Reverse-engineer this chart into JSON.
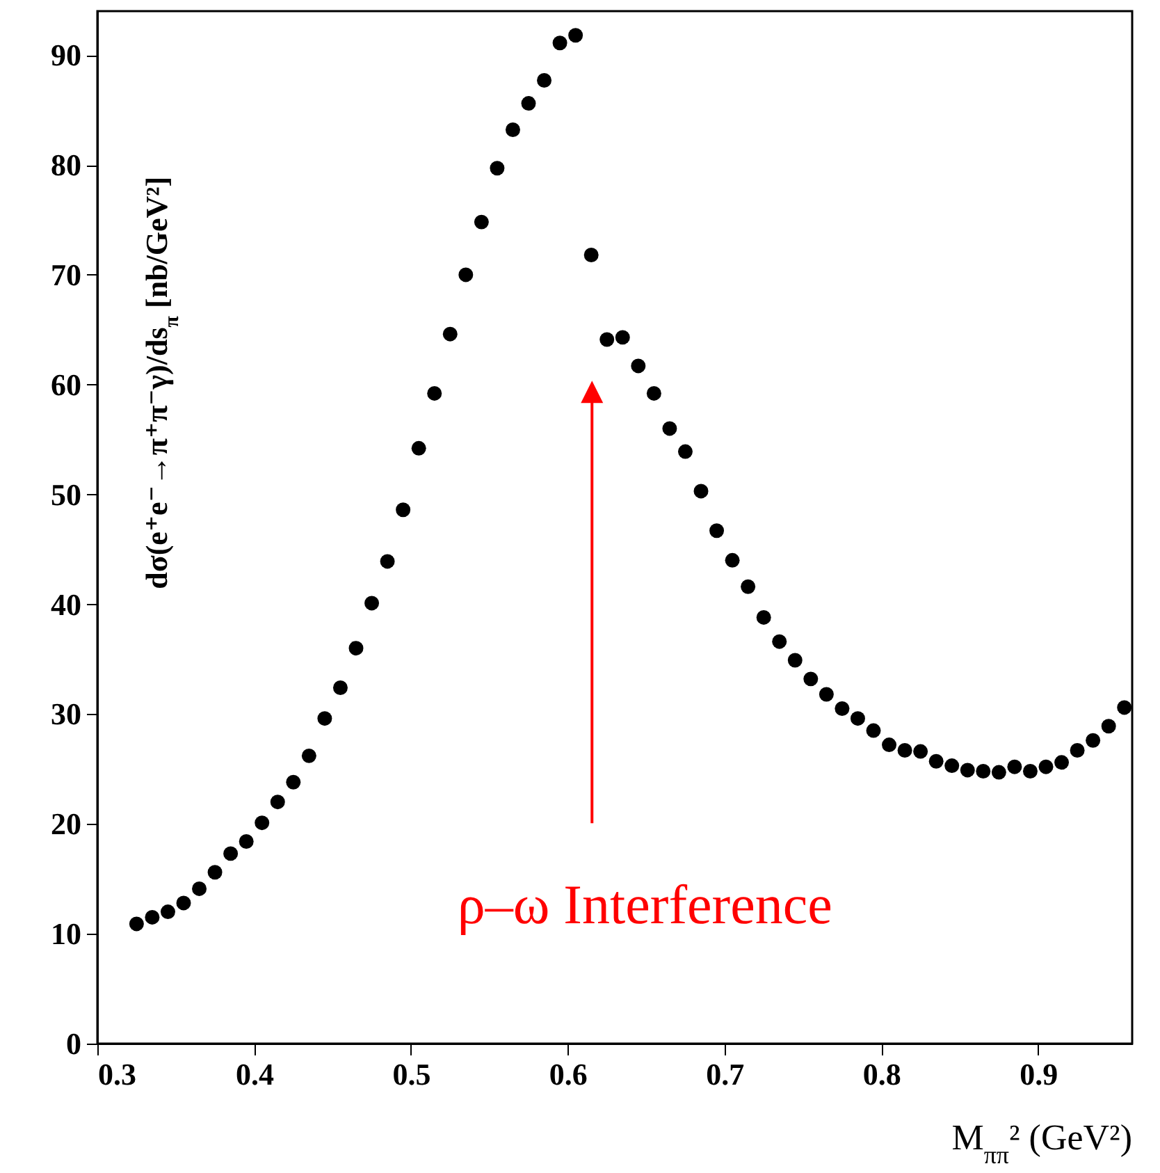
{
  "chart_data": {
    "type": "scatter",
    "xlabel": "M$_{ππ}$² (GeV²)",
    "ylabel": "dσ(e⁺e⁻→π⁺π⁻γ)/ds$_{π}$ [nb/GeV²]",
    "x": [
      0.325,
      0.335,
      0.345,
      0.355,
      0.365,
      0.375,
      0.385,
      0.395,
      0.405,
      0.415,
      0.425,
      0.435,
      0.445,
      0.455,
      0.465,
      0.475,
      0.485,
      0.495,
      0.505,
      0.515,
      0.525,
      0.535,
      0.545,
      0.555,
      0.565,
      0.575,
      0.585,
      0.595,
      0.605,
      0.615,
      0.625,
      0.635,
      0.645,
      0.655,
      0.665,
      0.675,
      0.685,
      0.695,
      0.705,
      0.715,
      0.725,
      0.735,
      0.745,
      0.755,
      0.765,
      0.775,
      0.785,
      0.795,
      0.805,
      0.815,
      0.825,
      0.835,
      0.845,
      0.855,
      0.865,
      0.875,
      0.885,
      0.895,
      0.905,
      0.915,
      0.925,
      0.935,
      0.945,
      0.955
    ],
    "series": [
      {
        "color": "#000000",
        "values": [
          10.9,
          11.5,
          12.0,
          12.8,
          14.1,
          15.6,
          17.3,
          18.4,
          20.1,
          22.0,
          23.8,
          26.2,
          29.6,
          32.4,
          36.0,
          40.1,
          43.9,
          48.6,
          54.2,
          59.2,
          64.6,
          70.0,
          74.8,
          79.7,
          83.2,
          85.6,
          87.7,
          91.1,
          91.8,
          71.8,
          64.1,
          64.3,
          61.7,
          59.2,
          56.0,
          53.9,
          50.3,
          46.7,
          44.0,
          41.6,
          38.8,
          36.6,
          34.9,
          33.2,
          31.8,
          30.5,
          29.6,
          28.5,
          27.2,
          26.7,
          26.6,
          25.7,
          25.3,
          24.9,
          24.8,
          24.7,
          25.2,
          24.8,
          25.2,
          25.6,
          26.7,
          27.6,
          28.9,
          30.6
        ]
      }
    ],
    "xlim": [
      0.3,
      0.96
    ],
    "xticks": [
      {
        "value": 0.3,
        "label": "0.3"
      },
      0.4,
      0.5,
      0.6,
      0.7,
      0.8,
      0.9
    ],
    "ylim": [
      0,
      94
    ],
    "yticks": [
      0,
      10,
      20,
      30,
      40,
      50,
      60,
      70,
      80,
      90
    ],
    "marker": "circle",
    "grid": false,
    "annotations": [
      "ρ–ω Interference"
    ]
  }
}
